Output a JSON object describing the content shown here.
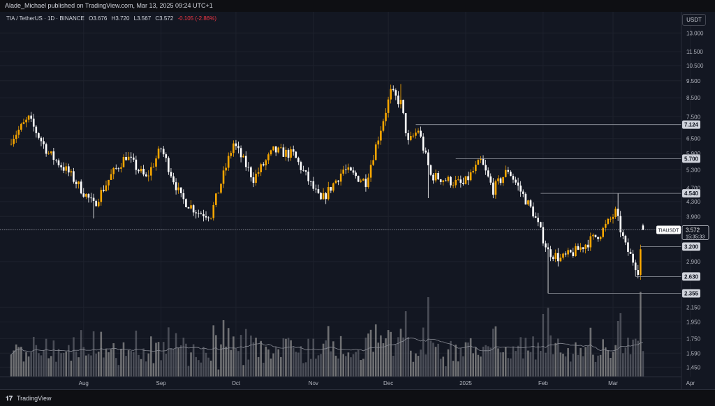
{
  "header": {
    "publisher": "Alade_Michael published on TradingView.com, Mar 13, 2025 09:24 UTC+1"
  },
  "legend": {
    "symbol": "TIA / TetherUS · 1D · BINANCE",
    "open_label": "O",
    "open": "3.676",
    "high_label": "H",
    "high": "3.720",
    "low_label": "L",
    "low": "3.567",
    "close_label": "C",
    "close": "3.572",
    "change": "-0.105 (-2.86%)"
  },
  "currency_button": "USDT",
  "footer": {
    "logo_glyph": "𝟏𝟕",
    "brand": "TradingView"
  },
  "colors": {
    "up": "#f7a600",
    "down": "#ffffff",
    "background": "#131722",
    "grid": "#1e222d",
    "axis_text": "#b2b5be"
  },
  "chart_data": {
    "type": "candlestick",
    "symbol": "TIAUSDT",
    "scale": "log",
    "x_ticks": [
      "Aug",
      "Sep",
      "Oct",
      "Nov",
      "Dec",
      "2025",
      "Feb",
      "Mar",
      "Apr"
    ],
    "x_tick_dates": [
      "2024-08-01",
      "2024-09-01",
      "2024-10-01",
      "2024-11-01",
      "2024-12-01",
      "2025-01-01",
      "2025-02-01",
      "2025-03-01",
      "2025-04-01"
    ],
    "y_ticks": [
      "13.000",
      "11.500",
      "10.500",
      "9.500",
      "8.500",
      "7.500",
      "6.500",
      "5.900",
      "5.300",
      "4.700",
      "4.300",
      "3.900",
      "2.900",
      "2.150",
      "1.950",
      "1.750",
      "1.590",
      "1.450"
    ],
    "ylim": [
      1.37,
      14.0
    ],
    "current_price": {
      "label": "TIAUSDT",
      "value": "3.572",
      "countdown": "15:35:33"
    },
    "levels": [
      {
        "value": "7.124",
        "start": "2024-12-12"
      },
      {
        "value": "5.700",
        "start": "2024-12-28"
      },
      {
        "value": "4.540",
        "start": "2025-01-31"
      },
      {
        "value": "3.200",
        "start": "2025-03-12"
      },
      {
        "value": "2.630",
        "start": "2025-03-10"
      },
      {
        "value": "2.355",
        "start": "2025-02-03"
      }
    ],
    "anchors": [
      [
        "2024-07-03",
        6.5
      ],
      [
        "2024-07-10",
        7.4
      ],
      [
        "2024-07-18",
        5.9
      ],
      [
        "2024-07-26",
        5.2
      ],
      [
        "2024-08-05",
        4.2
      ],
      [
        "2024-08-12",
        5.1
      ],
      [
        "2024-08-18",
        5.8
      ],
      [
        "2024-08-26",
        5.0
      ],
      [
        "2024-09-01",
        6.1
      ],
      [
        "2024-09-09",
        4.4
      ],
      [
        "2024-09-16",
        4.0
      ],
      [
        "2024-09-21",
        3.95
      ],
      [
        "2024-09-30",
        6.3
      ],
      [
        "2024-10-08",
        5.0
      ],
      [
        "2024-10-16",
        6.0
      ],
      [
        "2024-10-24",
        5.85
      ],
      [
        "2024-11-04",
        4.3
      ],
      [
        "2024-11-13",
        5.3
      ],
      [
        "2024-11-22",
        4.9
      ],
      [
        "2024-12-02",
        8.8
      ],
      [
        "2024-12-06",
        8.2
      ],
      [
        "2024-12-09",
        6.3
      ],
      [
        "2024-12-13",
        6.9
      ],
      [
        "2024-12-18",
        5.1
      ],
      [
        "2024-12-31",
        4.8
      ],
      [
        "2025-01-07",
        5.6
      ],
      [
        "2025-01-12",
        4.65
      ],
      [
        "2025-01-18",
        5.3
      ],
      [
        "2025-01-28",
        4.0
      ],
      [
        "2025-02-03",
        3.1
      ],
      [
        "2025-02-08",
        2.95
      ],
      [
        "2025-02-14",
        3.1
      ],
      [
        "2025-02-24",
        3.5
      ],
      [
        "2025-03-02",
        4.0
      ],
      [
        "2025-03-06",
        3.2
      ],
      [
        "2025-03-11",
        2.75
      ],
      [
        "2025-03-13",
        3.572
      ]
    ]
  }
}
